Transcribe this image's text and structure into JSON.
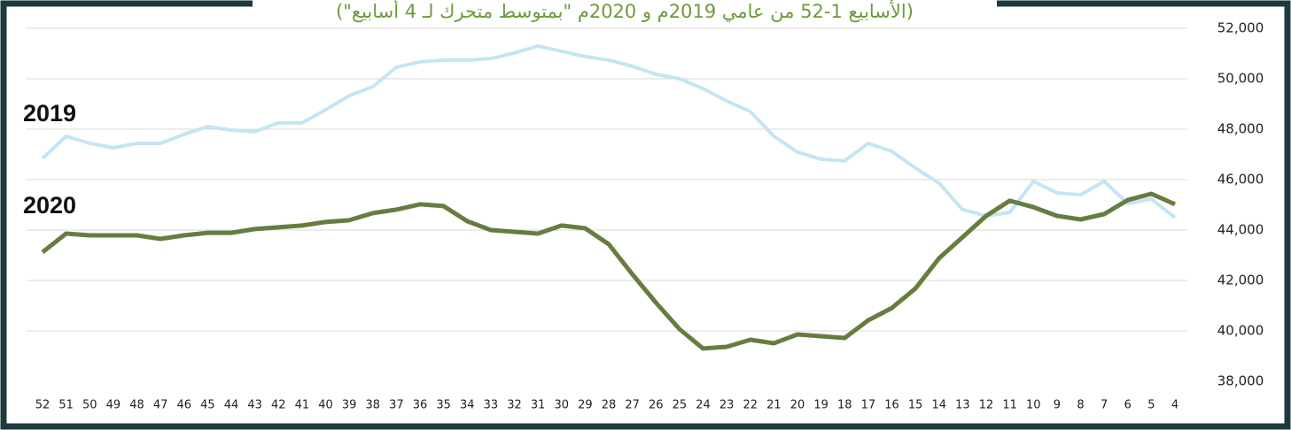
{
  "chart_data": {
    "type": "line",
    "title": "(الأسابيع 1-52 من عامي 2019م و 2020م \"بمتوسط متحرك لـ 4 أسابيع\")",
    "categories": [
      "52",
      "51",
      "50",
      "49",
      "48",
      "47",
      "46",
      "45",
      "44",
      "43",
      "42",
      "41",
      "40",
      "39",
      "38",
      "37",
      "36",
      "35",
      "34",
      "33",
      "32",
      "31",
      "30",
      "29",
      "28",
      "27",
      "26",
      "25",
      "24",
      "23",
      "22",
      "21",
      "20",
      "19",
      "18",
      "17",
      "16",
      "15",
      "14",
      "13",
      "12",
      "11",
      "10",
      "9",
      "8",
      "7",
      "6",
      "5",
      "4"
    ],
    "series": [
      {
        "name": "2019",
        "color": "#c4e5f3",
        "values": [
          46840,
          47720,
          47440,
          47260,
          47440,
          47440,
          47800,
          48100,
          47960,
          47900,
          48250,
          48250,
          48770,
          49330,
          49680,
          50460,
          50670,
          50740,
          50740,
          50800,
          51020,
          51300,
          51090,
          50880,
          50740,
          50500,
          50180,
          50000,
          49610,
          49120,
          48700,
          47720,
          47090,
          46810,
          46740,
          47440,
          47120,
          46460,
          45860,
          44810,
          44560,
          44700,
          45930,
          45470,
          45400,
          45930,
          45050,
          45230,
          44490
        ]
      },
      {
        "name": "2020",
        "color": "#677d3f",
        "values": [
          43120,
          43860,
          43790,
          43790,
          43790,
          43650,
          43790,
          43890,
          43890,
          44040,
          44110,
          44180,
          44320,
          44390,
          44670,
          44810,
          45020,
          44950,
          44350,
          44000,
          43930,
          43860,
          44180,
          44070,
          43440,
          42250,
          41120,
          40070,
          39300,
          39370,
          39650,
          39510,
          39860,
          39790,
          39720,
          40420,
          40910,
          41680,
          42880,
          43720,
          44560,
          45160,
          44910,
          44560,
          44420,
          44630,
          45190,
          45440,
          45020
        ]
      }
    ],
    "ylim": [
      38000,
      52000
    ],
    "yticks": [
      {
        "value": 38000,
        "label": "38,000"
      },
      {
        "value": 40000,
        "label": "40,000"
      },
      {
        "value": 42000,
        "label": "42,000"
      },
      {
        "value": 44000,
        "label": "44,000"
      },
      {
        "value": 46000,
        "label": "46,000"
      },
      {
        "value": 48000,
        "label": "48,000"
      },
      {
        "value": 50000,
        "label": "50,000"
      },
      {
        "value": 52000,
        "label": "52,000"
      }
    ],
    "grid": true
  }
}
